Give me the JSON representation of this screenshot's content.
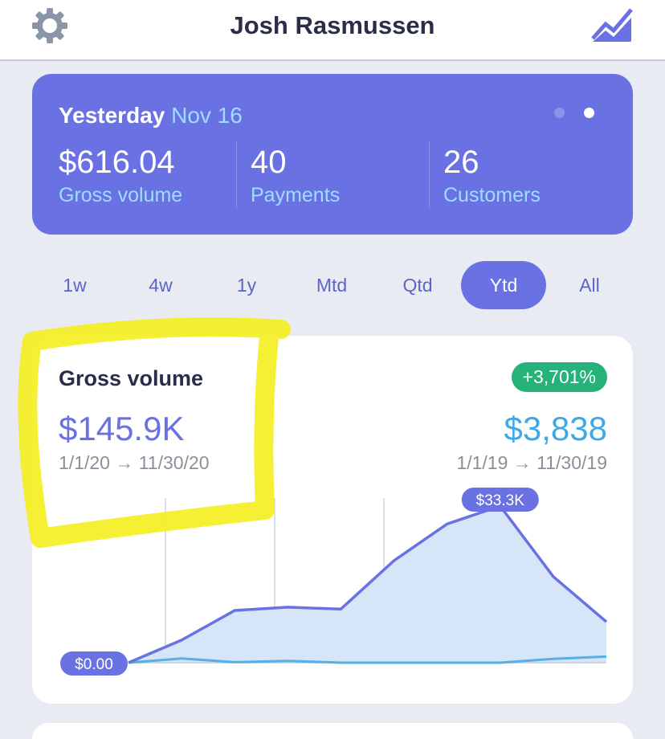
{
  "header": {
    "title": "Josh Rasmussen",
    "left_icon": "gear-icon",
    "right_icon": "trend-chart-icon"
  },
  "summary": {
    "label": "Yesterday",
    "date": "Nov 16",
    "page": 2,
    "pages": 2,
    "stats": [
      {
        "value": "$616.04",
        "label": "Gross volume"
      },
      {
        "value": "40",
        "label": "Payments"
      },
      {
        "value": "26",
        "label": "Customers"
      }
    ]
  },
  "ranges": {
    "items": [
      "1w",
      "4w",
      "1y",
      "Mtd",
      "Qtd",
      "Ytd",
      "All"
    ],
    "active": "Ytd"
  },
  "card": {
    "title": "Gross volume",
    "value": "$145.9K",
    "date_range": "1/1/20 → 11/30/20",
    "change": "+3,701%",
    "prev_value": "$3,838",
    "prev_date_range": "1/1/19 → 11/30/19"
  },
  "chart_data": {
    "type": "area",
    "min_label": "$0.00",
    "max_label": "$33.3K",
    "ylim": [
      0,
      33300
    ],
    "series": [
      {
        "values": [
          0,
          4800,
          11100,
          11800,
          11400,
          21700,
          29500,
          33300,
          18300,
          8700
        ]
      },
      {
        "values": [
          0,
          900,
          100,
          400,
          0,
          0,
          0,
          0,
          800,
          1300
        ]
      }
    ],
    "colors": {
      "current": "#6a72e3",
      "fill": "#d6e6f8",
      "previous": "#56b0e8"
    }
  },
  "colors": {
    "accent": "#6a72e3",
    "positive": "#25b37a",
    "highlight": "#f5ee1e"
  }
}
